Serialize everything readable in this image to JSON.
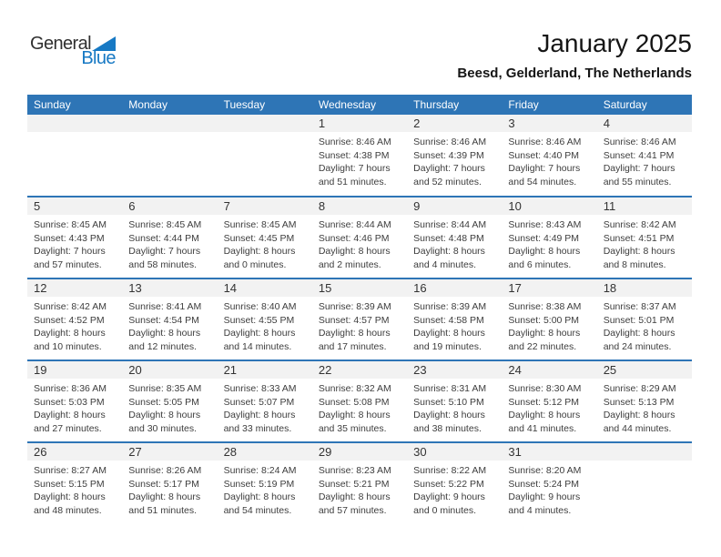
{
  "logo": {
    "text_top": "General",
    "text_bottom": "Blue",
    "triangle_icon": "blue-right-triangle",
    "color_dark": "#2F2F2F",
    "color_blue": "#1779C4"
  },
  "header": {
    "title": "January 2025",
    "subtitle": "Beesd, Gelderland, The Netherlands"
  },
  "colors": {
    "weekday_header_bg": "#2E75B6",
    "weekday_header_text": "#FFFFFF",
    "day_number_band_bg": "#F2F2F2",
    "week_divider": "#2E75B6",
    "body_text": "#3D3D3D"
  },
  "calendar": {
    "weekday_headers": [
      "Sunday",
      "Monday",
      "Tuesday",
      "Wednesday",
      "Thursday",
      "Friday",
      "Saturday"
    ],
    "labels": {
      "sunrise": "Sunrise:",
      "sunset": "Sunset:",
      "daylight": "Daylight:"
    },
    "weeks": [
      [
        null,
        null,
        null,
        {
          "day": "1",
          "sunrise": "8:46 AM",
          "sunset": "4:38 PM",
          "daylight": "7 hours and 51 minutes."
        },
        {
          "day": "2",
          "sunrise": "8:46 AM",
          "sunset": "4:39 PM",
          "daylight": "7 hours and 52 minutes."
        },
        {
          "day": "3",
          "sunrise": "8:46 AM",
          "sunset": "4:40 PM",
          "daylight": "7 hours and 54 minutes."
        },
        {
          "day": "4",
          "sunrise": "8:46 AM",
          "sunset": "4:41 PM",
          "daylight": "7 hours and 55 minutes."
        }
      ],
      [
        {
          "day": "5",
          "sunrise": "8:45 AM",
          "sunset": "4:43 PM",
          "daylight": "7 hours and 57 minutes."
        },
        {
          "day": "6",
          "sunrise": "8:45 AM",
          "sunset": "4:44 PM",
          "daylight": "7 hours and 58 minutes."
        },
        {
          "day": "7",
          "sunrise": "8:45 AM",
          "sunset": "4:45 PM",
          "daylight": "8 hours and 0 minutes."
        },
        {
          "day": "8",
          "sunrise": "8:44 AM",
          "sunset": "4:46 PM",
          "daylight": "8 hours and 2 minutes."
        },
        {
          "day": "9",
          "sunrise": "8:44 AM",
          "sunset": "4:48 PM",
          "daylight": "8 hours and 4 minutes."
        },
        {
          "day": "10",
          "sunrise": "8:43 AM",
          "sunset": "4:49 PM",
          "daylight": "8 hours and 6 minutes."
        },
        {
          "day": "11",
          "sunrise": "8:42 AM",
          "sunset": "4:51 PM",
          "daylight": "8 hours and 8 minutes."
        }
      ],
      [
        {
          "day": "12",
          "sunrise": "8:42 AM",
          "sunset": "4:52 PM",
          "daylight": "8 hours and 10 minutes."
        },
        {
          "day": "13",
          "sunrise": "8:41 AM",
          "sunset": "4:54 PM",
          "daylight": "8 hours and 12 minutes."
        },
        {
          "day": "14",
          "sunrise": "8:40 AM",
          "sunset": "4:55 PM",
          "daylight": "8 hours and 14 minutes."
        },
        {
          "day": "15",
          "sunrise": "8:39 AM",
          "sunset": "4:57 PM",
          "daylight": "8 hours and 17 minutes."
        },
        {
          "day": "16",
          "sunrise": "8:39 AM",
          "sunset": "4:58 PM",
          "daylight": "8 hours and 19 minutes."
        },
        {
          "day": "17",
          "sunrise": "8:38 AM",
          "sunset": "5:00 PM",
          "daylight": "8 hours and 22 minutes."
        },
        {
          "day": "18",
          "sunrise": "8:37 AM",
          "sunset": "5:01 PM",
          "daylight": "8 hours and 24 minutes."
        }
      ],
      [
        {
          "day": "19",
          "sunrise": "8:36 AM",
          "sunset": "5:03 PM",
          "daylight": "8 hours and 27 minutes."
        },
        {
          "day": "20",
          "sunrise": "8:35 AM",
          "sunset": "5:05 PM",
          "daylight": "8 hours and 30 minutes."
        },
        {
          "day": "21",
          "sunrise": "8:33 AM",
          "sunset": "5:07 PM",
          "daylight": "8 hours and 33 minutes."
        },
        {
          "day": "22",
          "sunrise": "8:32 AM",
          "sunset": "5:08 PM",
          "daylight": "8 hours and 35 minutes."
        },
        {
          "day": "23",
          "sunrise": "8:31 AM",
          "sunset": "5:10 PM",
          "daylight": "8 hours and 38 minutes."
        },
        {
          "day": "24",
          "sunrise": "8:30 AM",
          "sunset": "5:12 PM",
          "daylight": "8 hours and 41 minutes."
        },
        {
          "day": "25",
          "sunrise": "8:29 AM",
          "sunset": "5:13 PM",
          "daylight": "8 hours and 44 minutes."
        }
      ],
      [
        {
          "day": "26",
          "sunrise": "8:27 AM",
          "sunset": "5:15 PM",
          "daylight": "8 hours and 48 minutes."
        },
        {
          "day": "27",
          "sunrise": "8:26 AM",
          "sunset": "5:17 PM",
          "daylight": "8 hours and 51 minutes."
        },
        {
          "day": "28",
          "sunrise": "8:24 AM",
          "sunset": "5:19 PM",
          "daylight": "8 hours and 54 minutes."
        },
        {
          "day": "29",
          "sunrise": "8:23 AM",
          "sunset": "5:21 PM",
          "daylight": "8 hours and 57 minutes."
        },
        {
          "day": "30",
          "sunrise": "8:22 AM",
          "sunset": "5:22 PM",
          "daylight": "9 hours and 0 minutes."
        },
        {
          "day": "31",
          "sunrise": "8:20 AM",
          "sunset": "5:24 PM",
          "daylight": "9 hours and 4 minutes."
        },
        null
      ]
    ]
  }
}
